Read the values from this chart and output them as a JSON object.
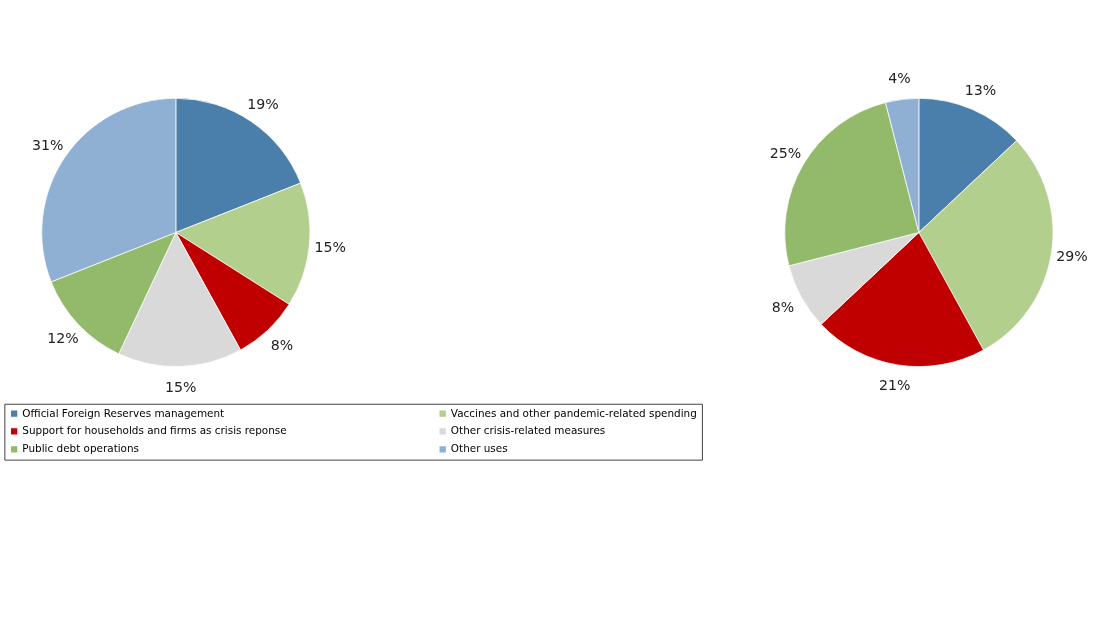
{
  "chart_data": [
    {
      "type": "pie",
      "categories": [
        "Official Foreign Reserves management",
        "Vaccines and other pandemic-related spending",
        "Support for households and firms as crisis reponse",
        "Other crisis-related measures",
        "Public debt operations",
        "Other uses"
      ],
      "values": [
        19,
        15,
        8,
        15,
        12,
        31
      ],
      "value_labels": [
        "19%",
        "15%",
        "8%",
        "15%",
        "12%",
        "31%"
      ],
      "colors": [
        "#4a7eab",
        "#b3cf8e",
        "#c00000",
        "#d9d9d9",
        "#93b96b",
        "#8fb0d2"
      ],
      "legend": "bottom"
    },
    {
      "type": "pie",
      "categories": [
        null,
        null,
        null,
        null,
        null,
        null
      ],
      "values": [
        13,
        29,
        21,
        8,
        25,
        4
      ],
      "value_labels": [
        "13%",
        "29%",
        "21%",
        "8%",
        "25%",
        "4%"
      ],
      "colors": [
        "#4a7eab",
        "#b3cf8e",
        "#c00000",
        "#d9d9d9",
        "#93b96b",
        "#8fb0d2"
      ]
    }
  ]
}
